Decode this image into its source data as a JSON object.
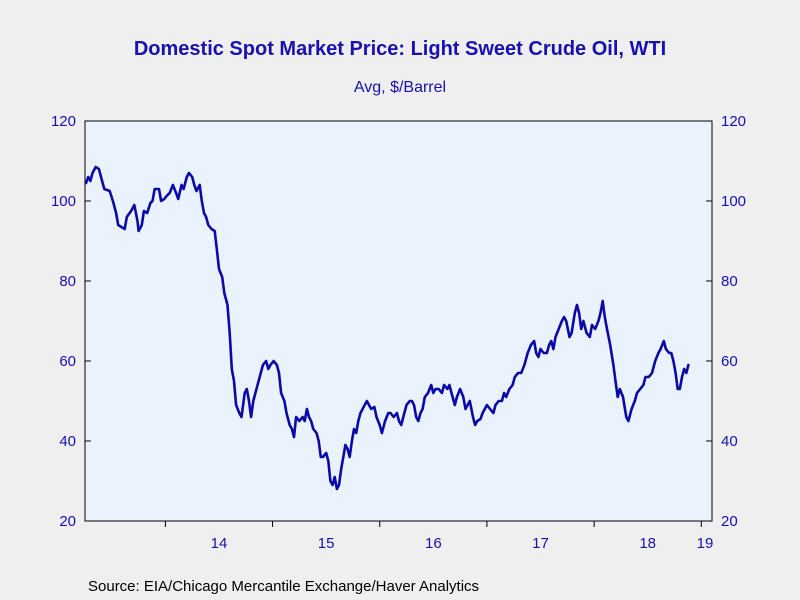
{
  "chart_data": {
    "type": "line",
    "title": "Domestic Spot Market Price: Light Sweet Crude Oil, WTI",
    "subtitle": "Avg, $/Barrel",
    "source": "Source:  EIA/Chicago Mercantile Exchange/Haver Analytics",
    "xlabel": "",
    "ylabel": "",
    "ylim": [
      20,
      120
    ],
    "yticks": [
      20,
      40,
      60,
      80,
      100,
      120
    ],
    "xlim": [
      2013.25,
      2019.1
    ],
    "xticks": [
      {
        "label": "14",
        "year": 2014
      },
      {
        "label": "15",
        "year": 2015
      },
      {
        "label": "16",
        "year": 2016
      },
      {
        "label": "17",
        "year": 2017
      },
      {
        "label": "18",
        "year": 2018
      },
      {
        "label": "19",
        "year": 2019
      }
    ],
    "grid": false,
    "line_color": "#0b0aa6",
    "plot_background": "#eaf3fd",
    "series": [
      {
        "points": [
          [
            2013.26,
            104.5
          ],
          [
            2013.28,
            106
          ],
          [
            2013.3,
            105
          ],
          [
            2013.32,
            107
          ],
          [
            2013.35,
            108.5
          ],
          [
            2013.38,
            108
          ],
          [
            2013.41,
            105
          ],
          [
            2013.43,
            103
          ],
          [
            2013.48,
            102.5
          ],
          [
            2013.51,
            100
          ],
          [
            2013.54,
            97
          ],
          [
            2013.56,
            94
          ],
          [
            2013.59,
            93.5
          ],
          [
            2013.62,
            93
          ],
          [
            2013.64,
            96
          ],
          [
            2013.68,
            97.5
          ],
          [
            2013.71,
            99
          ],
          [
            2013.74,
            95
          ],
          [
            2013.75,
            92.5
          ],
          [
            2013.78,
            94
          ],
          [
            2013.8,
            97.5
          ],
          [
            2013.83,
            97
          ],
          [
            2013.86,
            99.5
          ],
          [
            2013.88,
            100
          ],
          [
            2013.9,
            103
          ],
          [
            2013.94,
            103
          ],
          [
            2013.96,
            100
          ],
          [
            2013.99,
            100.5
          ],
          [
            2014.02,
            101.5
          ],
          [
            2014.04,
            102
          ],
          [
            2014.07,
            104
          ],
          [
            2014.1,
            102
          ],
          [
            2014.12,
            100.5
          ],
          [
            2014.15,
            104
          ],
          [
            2014.17,
            103
          ],
          [
            2014.2,
            106
          ],
          [
            2014.22,
            107
          ],
          [
            2014.25,
            106
          ],
          [
            2014.27,
            104
          ],
          [
            2014.29,
            102.5
          ],
          [
            2014.32,
            104
          ],
          [
            2014.34,
            100
          ],
          [
            2014.36,
            97
          ],
          [
            2014.38,
            96
          ],
          [
            2014.4,
            94
          ],
          [
            2014.43,
            93
          ],
          [
            2014.46,
            92.5
          ],
          [
            2014.48,
            88
          ],
          [
            2014.5,
            83
          ],
          [
            2014.53,
            81
          ],
          [
            2014.55,
            77
          ],
          [
            2014.58,
            74
          ],
          [
            2014.6,
            67
          ],
          [
            2014.62,
            58
          ],
          [
            2014.64,
            55
          ],
          [
            2014.66,
            49
          ],
          [
            2014.69,
            47
          ],
          [
            2014.71,
            46
          ],
          [
            2014.74,
            52
          ],
          [
            2014.76,
            53
          ],
          [
            2014.78,
            50
          ],
          [
            2014.8,
            46
          ],
          [
            2014.82,
            50
          ],
          [
            2014.84,
            52
          ],
          [
            2014.87,
            55
          ],
          [
            2014.89,
            57
          ],
          [
            2014.91,
            59
          ],
          [
            2014.94,
            60
          ],
          [
            2014.96,
            58
          ],
          [
            2014.98,
            59
          ],
          [
            2015.01,
            60
          ],
          [
            2015.04,
            59
          ],
          [
            2015.06,
            57
          ],
          [
            2015.08,
            52
          ],
          [
            2015.11,
            50
          ],
          [
            2015.13,
            47
          ],
          [
            2015.16,
            44
          ],
          [
            2015.18,
            43
          ],
          [
            2015.2,
            41
          ],
          [
            2015.22,
            46
          ],
          [
            2015.25,
            45
          ],
          [
            2015.28,
            46
          ],
          [
            2015.3,
            45
          ],
          [
            2015.32,
            48
          ],
          [
            2015.34,
            46
          ],
          [
            2015.36,
            45
          ],
          [
            2015.38,
            43
          ],
          [
            2015.41,
            42
          ],
          [
            2015.43,
            40
          ],
          [
            2015.45,
            36
          ],
          [
            2015.47,
            36
          ],
          [
            2015.5,
            37
          ],
          [
            2015.52,
            35
          ],
          [
            2015.54,
            30
          ],
          [
            2015.56,
            29
          ],
          [
            2015.58,
            31
          ],
          [
            2015.6,
            28
          ],
          [
            2015.62,
            29
          ],
          [
            2015.64,
            33
          ],
          [
            2015.66,
            36
          ],
          [
            2015.68,
            39
          ],
          [
            2015.7,
            38
          ],
          [
            2015.72,
            36
          ],
          [
            2015.74,
            40
          ],
          [
            2015.76,
            43
          ],
          [
            2015.78,
            42
          ],
          [
            2015.8,
            45
          ],
          [
            2015.82,
            47
          ],
          [
            2015.84,
            48
          ],
          [
            2015.86,
            49
          ],
          [
            2015.88,
            50
          ],
          [
            2015.9,
            49
          ],
          [
            2015.92,
            48
          ],
          [
            2015.95,
            48.5
          ],
          [
            2015.97,
            46
          ],
          [
            2016.0,
            44
          ],
          [
            2016.02,
            42
          ],
          [
            2016.05,
            45
          ],
          [
            2016.08,
            47
          ],
          [
            2016.1,
            47
          ],
          [
            2016.13,
            46
          ],
          [
            2016.16,
            47
          ],
          [
            2016.18,
            45
          ],
          [
            2016.2,
            44
          ],
          [
            2016.22,
            46
          ],
          [
            2016.25,
            49
          ],
          [
            2016.28,
            50
          ],
          [
            2016.3,
            50
          ],
          [
            2016.32,
            49
          ],
          [
            2016.34,
            46
          ],
          [
            2016.36,
            45
          ],
          [
            2016.38,
            47
          ],
          [
            2016.4,
            48
          ],
          [
            2016.42,
            51
          ],
          [
            2016.45,
            52
          ],
          [
            2016.48,
            54
          ],
          [
            2016.5,
            52
          ],
          [
            2016.52,
            53
          ],
          [
            2016.55,
            53
          ],
          [
            2016.58,
            52
          ],
          [
            2016.6,
            54
          ],
          [
            2016.63,
            53
          ],
          [
            2016.65,
            54
          ],
          [
            2016.68,
            51
          ],
          [
            2016.7,
            49
          ],
          [
            2016.72,
            51
          ],
          [
            2016.75,
            53
          ],
          [
            2016.78,
            51
          ],
          [
            2016.8,
            48
          ],
          [
            2016.82,
            49
          ],
          [
            2016.84,
            50
          ],
          [
            2016.87,
            46
          ],
          [
            2016.89,
            44
          ],
          [
            2016.91,
            45
          ],
          [
            2016.94,
            45.5
          ],
          [
            2016.96,
            47
          ],
          [
            2016.98,
            48
          ],
          [
            2017.0,
            49
          ],
          [
            2017.03,
            48
          ],
          [
            2017.06,
            47
          ],
          [
            2017.08,
            49
          ],
          [
            2017.11,
            50
          ],
          [
            2017.14,
            50
          ],
          [
            2017.16,
            52
          ],
          [
            2017.18,
            51
          ],
          [
            2017.21,
            53
          ],
          [
            2017.24,
            54
          ],
          [
            2017.26,
            56
          ],
          [
            2017.29,
            57
          ],
          [
            2017.32,
            57
          ],
          [
            2017.35,
            59
          ],
          [
            2017.38,
            62
          ],
          [
            2017.41,
            64
          ],
          [
            2017.44,
            65
          ],
          [
            2017.46,
            62
          ],
          [
            2017.48,
            61
          ],
          [
            2017.5,
            63
          ],
          [
            2017.53,
            62
          ],
          [
            2017.56,
            62
          ],
          [
            2017.58,
            64
          ],
          [
            2017.6,
            65
          ],
          [
            2017.62,
            63
          ],
          [
            2017.64,
            66
          ],
          [
            2017.67,
            68
          ],
          [
            2017.7,
            70
          ],
          [
            2017.72,
            71
          ],
          [
            2017.74,
            70
          ],
          [
            2017.77,
            66
          ],
          [
            2017.79,
            67
          ],
          [
            2017.82,
            72
          ],
          [
            2017.84,
            74
          ],
          [
            2017.86,
            72
          ],
          [
            2017.88,
            68
          ],
          [
            2017.9,
            70
          ],
          [
            2017.93,
            67
          ],
          [
            2017.96,
            66
          ],
          [
            2017.98,
            69
          ],
          [
            2018.01,
            68
          ],
          [
            2018.04,
            70
          ],
          [
            2018.06,
            72
          ],
          [
            2018.08,
            75
          ],
          [
            2018.1,
            71
          ],
          [
            2018.12,
            68
          ],
          [
            2018.15,
            64
          ],
          [
            2018.18,
            59
          ],
          [
            2018.2,
            55
          ],
          [
            2018.22,
            51
          ],
          [
            2018.24,
            53
          ],
          [
            2018.27,
            51
          ],
          [
            2018.3,
            46
          ],
          [
            2018.32,
            45
          ],
          [
            2018.35,
            48
          ],
          [
            2018.38,
            50
          ],
          [
            2018.4,
            52
          ],
          [
            2018.43,
            53
          ],
          [
            2018.46,
            54
          ],
          [
            2018.48,
            56
          ],
          [
            2018.51,
            56
          ],
          [
            2018.54,
            57
          ],
          [
            2018.57,
            60
          ],
          [
            2018.6,
            62
          ],
          [
            2018.62,
            63
          ],
          [
            2018.65,
            65
          ],
          [
            2018.67,
            63
          ],
          [
            2018.7,
            62
          ],
          [
            2018.72,
            62
          ],
          [
            2018.74,
            60
          ],
          [
            2018.76,
            57
          ],
          [
            2018.78,
            53
          ],
          [
            2018.8,
            53
          ],
          [
            2018.82,
            56
          ],
          [
            2018.84,
            58
          ],
          [
            2018.86,
            57
          ],
          [
            2018.88,
            59
          ]
        ]
      }
    ]
  }
}
